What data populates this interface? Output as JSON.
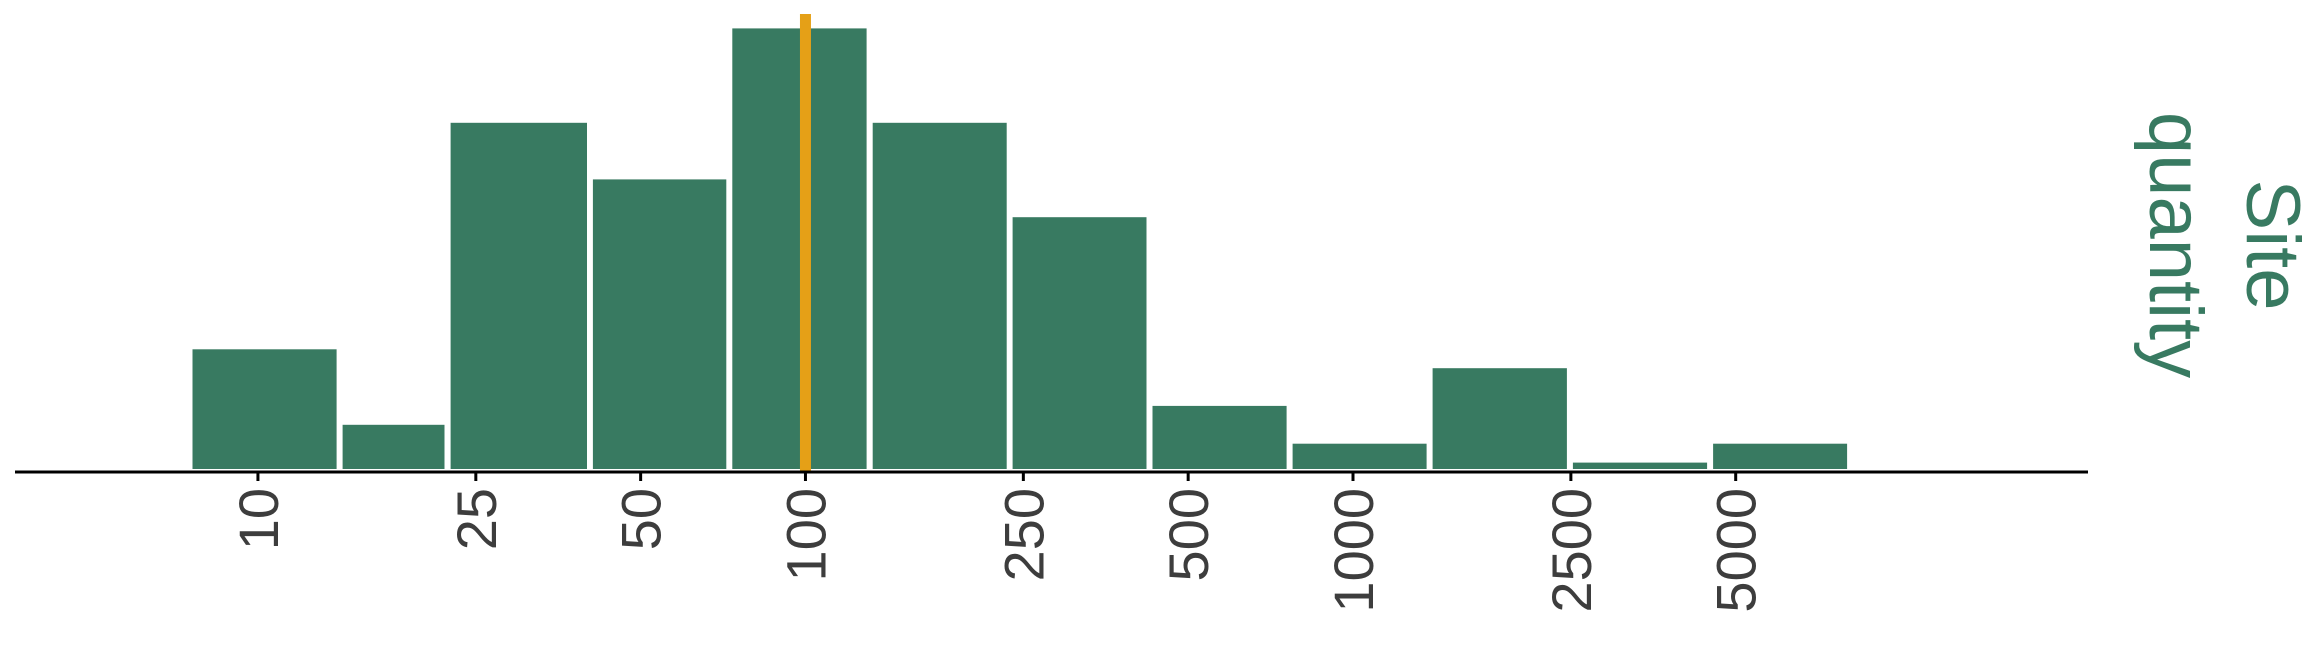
{
  "chart_data": {
    "type": "bar",
    "x_scale": "log",
    "bins": [
      {
        "lo": 7.5,
        "hi": 14.1,
        "count": 6.5
      },
      {
        "lo": 14.1,
        "hi": 22.2,
        "count": 2.5
      },
      {
        "lo": 22.2,
        "hi": 40.4,
        "count": 18.5
      },
      {
        "lo": 40.4,
        "hi": 72.6,
        "count": 15.5
      },
      {
        "lo": 72.6,
        "hi": 131,
        "count": 23.5
      },
      {
        "lo": 131,
        "hi": 236,
        "count": 18.5
      },
      {
        "lo": 236,
        "hi": 425,
        "count": 13.5
      },
      {
        "lo": 425,
        "hi": 766,
        "count": 3.5
      },
      {
        "lo": 766,
        "hi": 1380,
        "count": 1.5
      },
      {
        "lo": 1380,
        "hi": 2490,
        "count": 5.5
      },
      {
        "lo": 2490,
        "hi": 4490,
        "count": 0.5
      },
      {
        "lo": 4490,
        "hi": 8090,
        "count": 1.5
      }
    ],
    "ylim": [
      0,
      24
    ],
    "xlim": [
      3.6,
      22000
    ],
    "x_ticks": [
      10,
      25,
      50,
      100,
      250,
      500,
      1000,
      2500,
      5000
    ],
    "x_tick_labels": [
      "10",
      "25",
      "50",
      "100",
      "250",
      "500",
      "1000",
      "2500",
      "5000"
    ],
    "reference_line": {
      "x": 100,
      "color": "#E5A017"
    },
    "side_title": [
      "Site",
      "quantity"
    ],
    "colors": {
      "bar": "#387A61",
      "axis": "#000000",
      "tick_text": "#3D3D3D",
      "title": "#387A61"
    }
  }
}
